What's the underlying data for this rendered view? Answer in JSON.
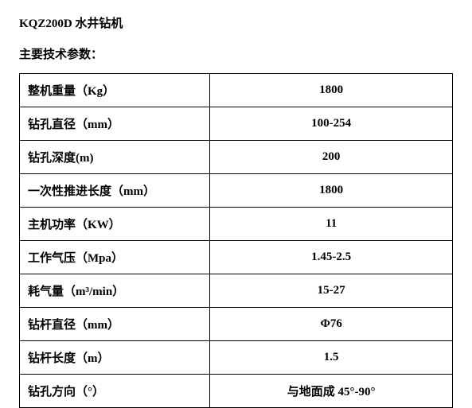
{
  "title": "KQZ200D 水井钻机",
  "subtitle": "主要技术参数：",
  "table": {
    "border_color": "#000000",
    "text_color": "#000000",
    "font_size": 15,
    "font_weight": "bold",
    "rows": [
      {
        "label": "整机重量（Kg）",
        "value": "1800"
      },
      {
        "label": "钻孔直径（mm）",
        "value": "100-254"
      },
      {
        "label": "钻孔深度(m)",
        "value": "200"
      },
      {
        "label": "一次性推进长度（mm）",
        "value": "1800"
      },
      {
        "label": "主机功率（KW）",
        "value": "11"
      },
      {
        "label": "工作气压（Mpa）",
        "value": "1.45-2.5"
      },
      {
        "label": "耗气量（m³/min）",
        "value": "15-27"
      },
      {
        "label": "钻杆直径（mm）",
        "value": "Φ76"
      },
      {
        "label": "钻杆长度（m）",
        "value": "1.5"
      },
      {
        "label": "钻孔方向（°）",
        "value": "与地面成 45°-90°"
      }
    ],
    "column_widths": [
      "44%",
      "56%"
    ],
    "value_alignment": "center",
    "label_alignment": "left"
  },
  "background_color": "#ffffff"
}
